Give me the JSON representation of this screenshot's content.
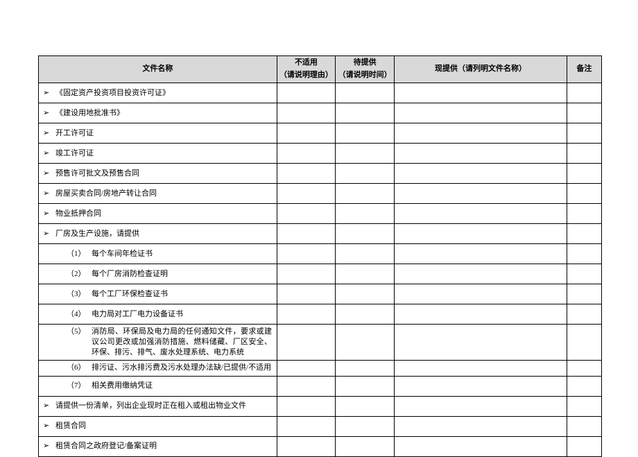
{
  "headers": {
    "name": "文件名称",
    "na_l1": "不适用",
    "na_l2": "（请说明理由）",
    "pend_l1": "待提供",
    "pend_l2": "（请说明时间）",
    "prov": "现提供（请列明文件名称）",
    "note": "备注"
  },
  "rows": [
    {
      "type": "top",
      "text": "《固定资产投资项目投资许可证》"
    },
    {
      "type": "top",
      "text": "《建设用地批准书》"
    },
    {
      "type": "top",
      "text": "开工许可证"
    },
    {
      "type": "top",
      "text": "竣工许可证"
    },
    {
      "type": "top",
      "text": "预售许可批文及预售合同"
    },
    {
      "type": "top",
      "text": "房屋买卖合同/房地产转让合同"
    },
    {
      "type": "top",
      "text": "物业抵押合同"
    },
    {
      "type": "top",
      "text": "厂房及生产设施，请提供"
    },
    {
      "type": "sub",
      "num": "（1）",
      "text": "每个车间年检证书"
    },
    {
      "type": "sub",
      "num": "（2）",
      "text": "每个厂房消防检查证明"
    },
    {
      "type": "sub",
      "num": "（3）",
      "text": "每个工厂环保检查证书"
    },
    {
      "type": "sub",
      "num": "（4）",
      "text": "电力局对工厂电力设备证书"
    },
    {
      "type": "sub",
      "num": "（5）",
      "text": "消防局、环保局及电力局的任何通知文件，要求或建议公司更改或加强消防措施、燃料储藏、厂区安全、环保、排污、排气、废水处理系统、电力系统",
      "tall": true
    },
    {
      "type": "sub",
      "num": "（6）",
      "text": "排污证、污水排污费及污水处理办法缺/已提供/不适用",
      "tall": true
    },
    {
      "type": "sub",
      "num": "（7）",
      "text": "相关费用缴纳凭证"
    },
    {
      "type": "top",
      "text": "请提供一份清单，列出企业现时正在租入或租出物业文件"
    },
    {
      "type": "top",
      "text": "租赁合同"
    },
    {
      "type": "top",
      "text": "租赁合同之政府登记/备案证明"
    }
  ],
  "bullet": "➢"
}
